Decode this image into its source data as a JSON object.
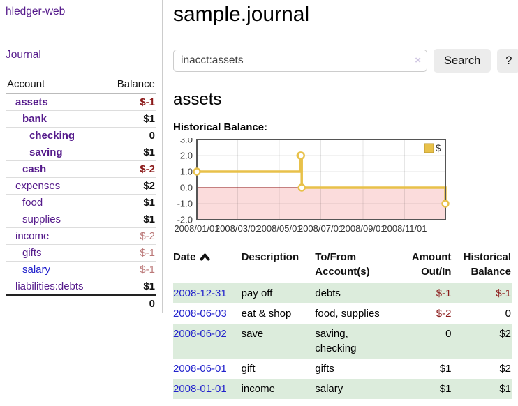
{
  "app": {
    "title": "hledger-web"
  },
  "sidebar": {
    "journal_link": "Journal",
    "accounts": {
      "header_account": "Account",
      "header_balance": "Balance",
      "rows": [
        {
          "name": "assets",
          "balance": "$-1"
        },
        {
          "name": "bank",
          "balance": "$1"
        },
        {
          "name": "checking",
          "balance": "0"
        },
        {
          "name": "saving",
          "balance": "$1"
        },
        {
          "name": "cash",
          "balance": "$-2"
        },
        {
          "name": "expenses",
          "balance": "$2"
        },
        {
          "name": "food",
          "balance": "$1"
        },
        {
          "name": "supplies",
          "balance": "$1"
        },
        {
          "name": "income",
          "balance": "$-2"
        },
        {
          "name": "gifts",
          "balance": "$-1"
        },
        {
          "name": "salary",
          "balance": "$-1"
        },
        {
          "name": "liabilities:debts",
          "balance": "$1"
        }
      ],
      "total": "0"
    }
  },
  "main": {
    "title": "sample.journal",
    "search": {
      "value": "inacct:assets",
      "clear": "×",
      "button": "Search",
      "help": "?"
    },
    "account_title": "assets",
    "chart_title": "Historical Balance:"
  },
  "chart_data": {
    "type": "line",
    "step": "after",
    "title": "Historical Balance:",
    "xlim": [
      "2008-01-01",
      "2008-12-31"
    ],
    "ylim": [
      -2.0,
      3.0
    ],
    "yticks": [
      3.0,
      2.0,
      1.0,
      0.0,
      -1.0,
      -2.0
    ],
    "xticks": [
      "2008/01/01",
      "2008/03/01",
      "2008/05/01",
      "2008/07/01",
      "2008/09/01",
      "2008/11/01"
    ],
    "legend_position": "top-right",
    "grid": true,
    "series": [
      {
        "name": "$",
        "points": [
          {
            "date": "2008-01-01",
            "value": 1
          },
          {
            "date": "2008-06-01",
            "value": 2
          },
          {
            "date": "2008-06-02",
            "value": 2
          },
          {
            "date": "2008-06-03",
            "value": 0
          },
          {
            "date": "2008-12-31",
            "value": -1
          }
        ]
      }
    ],
    "colors": {
      "line": "#e8c14a",
      "marker_fill": "#ffffff",
      "negative_region": "#fbdcdc",
      "zero_line": "#8b0000",
      "border": "#555555"
    }
  },
  "transactions": {
    "headers": {
      "date": "Date",
      "description": "Description",
      "accounts": "To/From Account(s)",
      "amount": "Amount Out/In",
      "balance": "Historical Balance"
    },
    "rows": [
      {
        "date": "2008-12-31",
        "description": "pay off",
        "accounts": "debts",
        "amount": "$-1",
        "balance": "$-1"
      },
      {
        "date": "2008-06-03",
        "description": "eat & shop",
        "accounts": "food, supplies",
        "amount": "$-2",
        "balance": "0"
      },
      {
        "date": "2008-06-02",
        "description": "save",
        "accounts": "saving, checking",
        "amount": "0",
        "balance": "$2"
      },
      {
        "date": "2008-06-01",
        "description": "gift",
        "accounts": "gifts",
        "amount": "$1",
        "balance": "$2"
      },
      {
        "date": "2008-01-01",
        "description": "income",
        "accounts": "salary",
        "amount": "$1",
        "balance": "$1"
      }
    ]
  },
  "colors": {
    "accent_purple": "#551a8b",
    "link_blue": "#2222cc",
    "negative_strong": "#8b1a1a",
    "negative_soft": "#bb7878",
    "row_stripe_green": "#dcecdc"
  }
}
